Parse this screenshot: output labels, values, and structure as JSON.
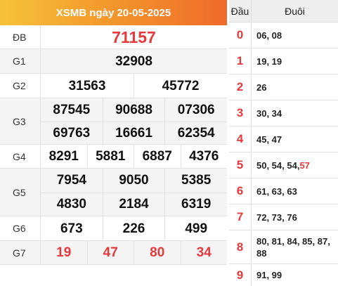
{
  "header": {
    "title": "XSMB ngày 20-05-2025"
  },
  "prizes": {
    "db": {
      "label": "ĐB",
      "values": [
        "71157"
      ]
    },
    "g1": {
      "label": "G1",
      "values": [
        "32908"
      ]
    },
    "g2": {
      "label": "G2",
      "values": [
        "31563",
        "45772"
      ]
    },
    "g3": {
      "label": "G3",
      "values": [
        "87545",
        "90688",
        "07306",
        "69763",
        "16661",
        "62354"
      ]
    },
    "g4": {
      "label": "G4",
      "values": [
        "8291",
        "5881",
        "6887",
        "4376"
      ]
    },
    "g5": {
      "label": "G5",
      "values": [
        "7954",
        "9050",
        "5385",
        "4830",
        "2184",
        "6319"
      ]
    },
    "g6": {
      "label": "G6",
      "values": [
        "673",
        "226",
        "499"
      ]
    },
    "g7": {
      "label": "G7",
      "values": [
        "19",
        "47",
        "80",
        "34"
      ]
    }
  },
  "tails": {
    "head_label": "Đầu",
    "tail_label": "Đuôi",
    "rows": [
      {
        "digit": "0",
        "text": "06, 08"
      },
      {
        "digit": "1",
        "text": "19, 19"
      },
      {
        "digit": "2",
        "text": "26"
      },
      {
        "digit": "3",
        "text": "30, 34"
      },
      {
        "digit": "4",
        "text": "45, 47"
      },
      {
        "digit": "5",
        "text": "50, 54, 54, ",
        "special": "57"
      },
      {
        "digit": "6",
        "text": "61, 63, 63"
      },
      {
        "digit": "7",
        "text": "72, 73, 76"
      },
      {
        "digit": "8",
        "text": "80, 81, 84, 85, 87, 88"
      },
      {
        "digit": "9",
        "text": "91, 99"
      }
    ]
  },
  "colors": {
    "accent_red": "#e5393c",
    "header_start": "#f6c23a",
    "header_end": "#ef6a2a"
  }
}
